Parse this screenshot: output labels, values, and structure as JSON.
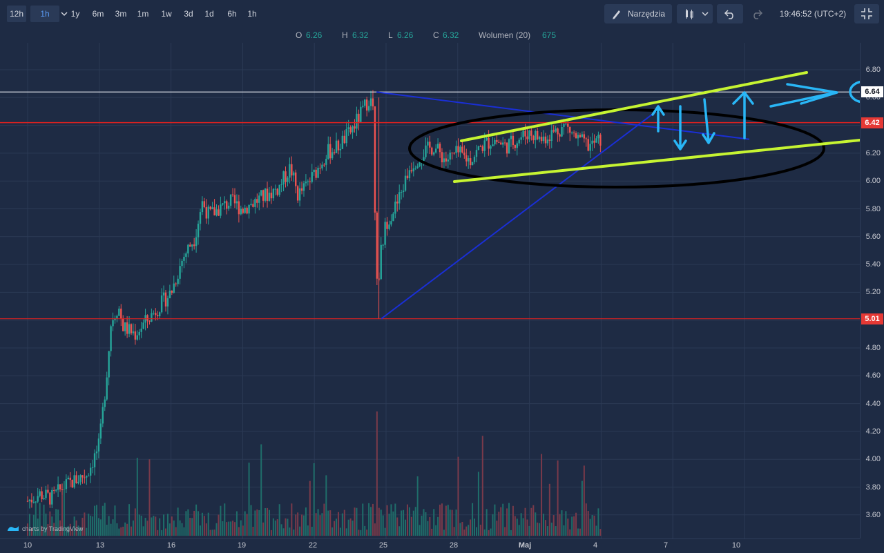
{
  "toolbar": {
    "timeframes": [
      "12h",
      "1h",
      "1y",
      "6m",
      "3m",
      "1m",
      "1w",
      "3d",
      "1d",
      "6h",
      "1h"
    ],
    "active_index": 0,
    "selected_index": 1,
    "tools_label": "Narzędzia",
    "clock": "19:46:52 (UTC+2)"
  },
  "ohlc": {
    "o_label": "O",
    "o_value": "6.26",
    "h_label": "H",
    "h_value": "6.32",
    "l_label": "L",
    "l_value": "6.26",
    "c_label": "C",
    "c_value": "6.32",
    "vol_label": "Wolumen (20)",
    "vol_value": "675"
  },
  "y_axis": {
    "ticks": [
      "6.80",
      "6.60",
      "6.20",
      "6.00",
      "5.80",
      "5.60",
      "5.40",
      "5.20",
      "4.80",
      "4.60",
      "4.40",
      "4.20",
      "4.00",
      "3.80",
      "3.60"
    ],
    "badges": [
      {
        "text": "6.64",
        "bg": "#ffffff",
        "fg": "#131722"
      },
      {
        "text": "6.42",
        "bg": "#e53935",
        "fg": "#ffffff"
      },
      {
        "text": "5.01",
        "bg": "#e53935",
        "fg": "#ffffff"
      }
    ]
  },
  "x_axis": {
    "ticks": [
      "10",
      "13",
      "16",
      "19",
      "22",
      "25",
      "28",
      "Maj",
      "4",
      "7",
      "10"
    ]
  },
  "branding": "charts by TradingView",
  "colors": {
    "background": "#1e2b44",
    "up": "#26a69a",
    "down": "#ef5350",
    "horizontal_level": "#e0201f",
    "top_level": "#d9dde5",
    "trend_blue": "#1a2fd6",
    "channel_green": "#c6f432",
    "annotation_cyan": "#29b6f6",
    "ellipse": "#000000"
  },
  "chart_data": {
    "type": "candlestick",
    "ylim": [
      3.5,
      6.9
    ],
    "levels": [
      6.64,
      6.42,
      5.01
    ],
    "x_ticks": [
      "10",
      "13",
      "16",
      "19",
      "22",
      "25",
      "28",
      "Maj",
      "4",
      "7",
      "10"
    ],
    "close_path": [
      [
        0,
        3.7
      ],
      [
        0.5,
        3.75
      ],
      [
        1,
        3.72
      ],
      [
        1.5,
        3.8
      ],
      [
        2,
        3.85
      ],
      [
        2.5,
        3.9
      ],
      [
        3,
        4.1
      ],
      [
        3.3,
        4.6
      ],
      [
        3.5,
        5.0
      ],
      [
        3.8,
        5.1
      ],
      [
        4,
        4.95
      ],
      [
        4.5,
        4.9
      ],
      [
        5,
        5.0
      ],
      [
        5.5,
        5.1
      ],
      [
        6,
        5.2
      ],
      [
        6.5,
        5.45
      ],
      [
        7,
        5.6
      ],
      [
        7.3,
        5.85
      ],
      [
        7.6,
        5.75
      ],
      [
        8,
        5.8
      ],
      [
        8.5,
        5.85
      ],
      [
        9,
        5.8
      ],
      [
        9.5,
        5.85
      ],
      [
        10,
        5.9
      ],
      [
        10.5,
        5.95
      ],
      [
        11,
        6.1
      ],
      [
        11.3,
        5.9
      ],
      [
        11.6,
        5.95
      ],
      [
        12,
        6.05
      ],
      [
        12.5,
        6.2
      ],
      [
        13,
        6.25
      ],
      [
        13.5,
        6.35
      ],
      [
        14,
        6.5
      ],
      [
        14.3,
        6.6
      ],
      [
        14.5,
        6.5
      ],
      [
        14.7,
        5.4
      ],
      [
        15,
        5.7
      ],
      [
        15.5,
        5.85
      ],
      [
        16,
        6.1
      ],
      [
        16.5,
        6.2
      ],
      [
        17,
        6.25
      ],
      [
        17.5,
        6.15
      ],
      [
        18,
        6.2
      ],
      [
        18.5,
        6.15
      ],
      [
        19,
        6.25
      ],
      [
        19.5,
        6.3
      ],
      [
        20,
        6.25
      ],
      [
        20.5,
        6.3
      ],
      [
        21,
        6.35
      ],
      [
        21.5,
        6.3
      ],
      [
        22,
        6.35
      ],
      [
        22.5,
        6.4
      ],
      [
        23,
        6.3
      ],
      [
        23.5,
        6.25
      ],
      [
        24,
        6.3
      ]
    ],
    "annotations": [
      "ascending channel (green)",
      "triangle trendlines (blue)",
      "ellipse (black)",
      "arrows (cyan)",
      "circled 6.64 target"
    ]
  }
}
